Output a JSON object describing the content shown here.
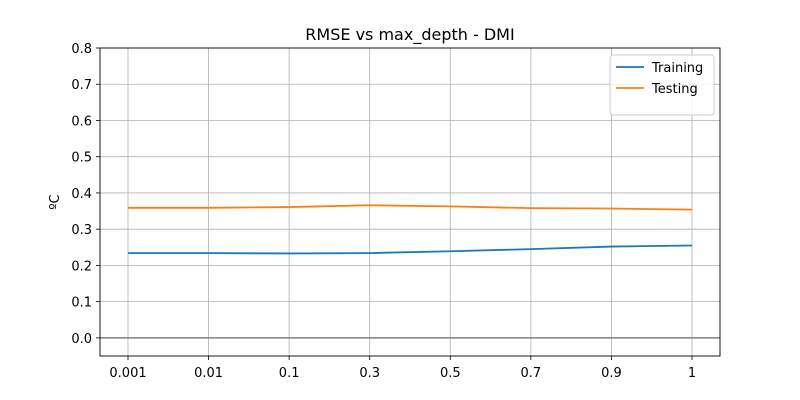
{
  "chart_data": {
    "type": "line",
    "title": "RMSE vs max_depth - DMI",
    "xlabel": "",
    "ylabel": "ºC",
    "categories": [
      "0.001",
      "0.01",
      "0.1",
      "0.3",
      "0.5",
      "0.7",
      "0.9",
      "1"
    ],
    "ylim": [
      -0.05,
      0.8
    ],
    "yticks": [
      "0.0",
      "0.1",
      "0.2",
      "0.3",
      "0.4",
      "0.5",
      "0.6",
      "0.7",
      "0.8"
    ],
    "grid": true,
    "legend_position": "top-right",
    "zero_line": true,
    "series": [
      {
        "name": "Training",
        "color": "#1f77b4",
        "values": [
          0.234,
          0.234,
          0.233,
          0.234,
          0.239,
          0.245,
          0.252,
          0.255
        ]
      },
      {
        "name": "Testing",
        "color": "#ff7f0e",
        "values": [
          0.359,
          0.359,
          0.361,
          0.366,
          0.363,
          0.358,
          0.357,
          0.354
        ]
      }
    ]
  }
}
